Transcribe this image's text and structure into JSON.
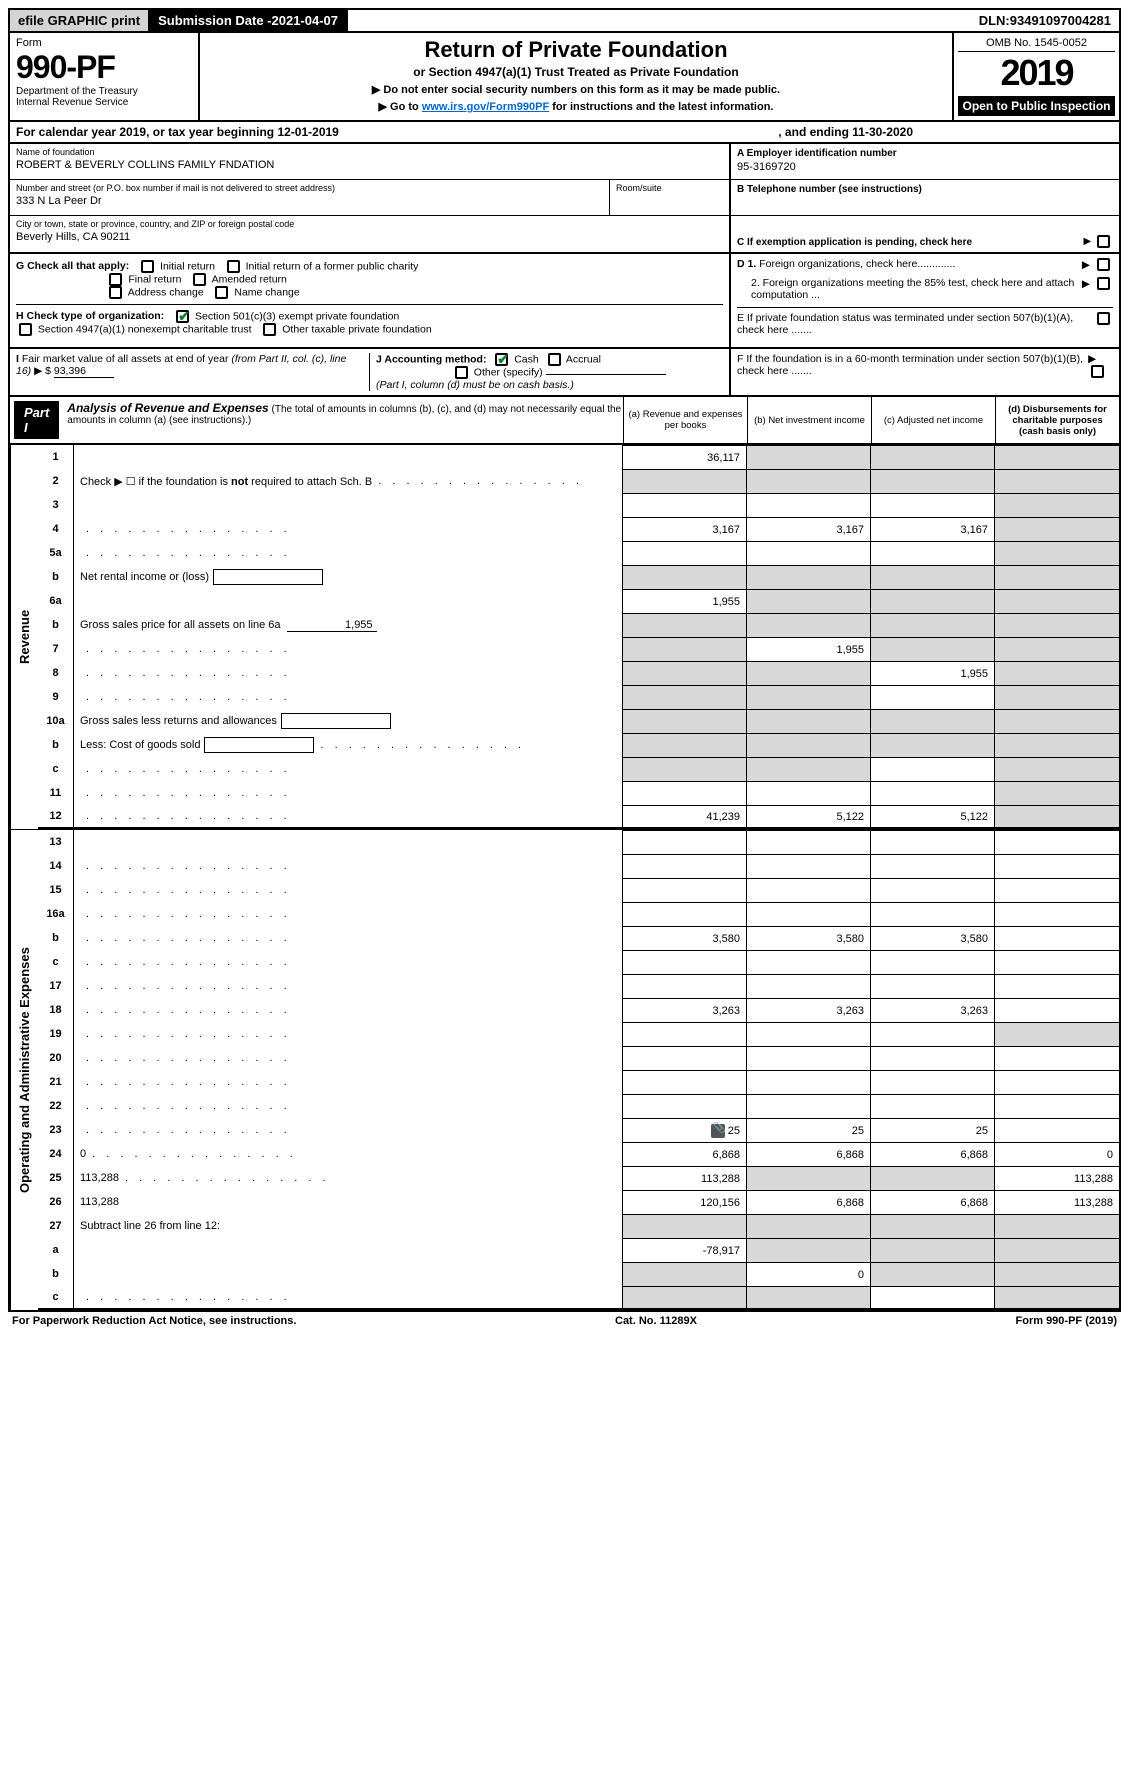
{
  "topbar": {
    "efile": "efile GRAPHIC print",
    "submission_label": "Submission Date - ",
    "submission_date": "2021-04-07",
    "dln_label": "DLN: ",
    "dln": "93491097004281"
  },
  "header": {
    "form_label_top": "Form",
    "form_number": "990-PF",
    "dept1": "Department of the Treasury",
    "dept2": "Internal Revenue Service",
    "title": "Return of Private Foundation",
    "subtitle": "or Section 4947(a)(1) Trust Treated as Private Foundation",
    "note1": "▶ Do not enter social security numbers on this form as it may be made public.",
    "note2_pre": "▶ Go to ",
    "note2_link": "www.irs.gov/Form990PF",
    "note2_post": " for instructions and the latest information.",
    "omb": "OMB No. 1545-0052",
    "year": "2019",
    "open": "Open to Public Inspection"
  },
  "calendar": {
    "line1a": "For calendar year 2019, or tax year beginning ",
    "begin": "12-01-2019",
    "mid": ", and ending ",
    "end": "11-30-2020"
  },
  "info": {
    "name_lbl": "Name of foundation",
    "name_val": "ROBERT & BEVERLY COLLINS FAMILY FNDATION",
    "street_lbl": "Number and street (or P.O. box number if mail is not delivered to street address)",
    "street_val": "333 N La Peer Dr",
    "room_lbl": "Room/suite",
    "city_lbl": "City or town, state or province, country, and ZIP or foreign postal code",
    "city_val": "Beverly Hills, CA  90211",
    "a_lbl": "A Employer identification number",
    "a_val": "95-3169720",
    "b_lbl": "B Telephone number (see instructions)",
    "c_lbl": "C If exemption application is pending, check here",
    "d1_lbl": "D 1. Foreign organizations, check here.............",
    "d2_lbl": "2. Foreign organizations meeting the 85% test, check here and attach computation ...",
    "e_lbl": "E  If private foundation status was terminated under section 507(b)(1)(A), check here .......",
    "f_lbl": "F  If the foundation is in a 60-month termination under section 507(b)(1)(B), check here .......",
    "g_lbl": "G Check all that apply:",
    "g_opts": [
      "Initial return",
      "Initial return of a former public charity",
      "Final return",
      "Amended return",
      "Address change",
      "Name change"
    ],
    "h_lbl": "H Check type of organization:",
    "h1": "Section 501(c)(3) exempt private foundation",
    "h2": "Section 4947(a)(1) nonexempt charitable trust",
    "h3": "Other taxable private foundation",
    "i_lbl": "I Fair market value of all assets at end of year (from Part II, col. (c), line 16) ▶ $",
    "i_val": "93,396",
    "j_lbl": "J Accounting method:",
    "j_cash": "Cash",
    "j_accrual": "Accrual",
    "j_other": "Other (specify)",
    "j_note": "(Part I, column (d) must be on cash basis.)"
  },
  "part1": {
    "tag": "Part I",
    "title": "Analysis of Revenue and Expenses",
    "title_note": " (The total of amounts in columns (b), (c), and (d) may not necessarily equal the amounts in column (a) (see instructions).)",
    "col_a": "(a)  Revenue and expenses per books",
    "col_b": "(b)  Net investment income",
    "col_c": "(c)  Adjusted net income",
    "col_d": "(d)  Disbursements for charitable purposes (cash basis only)"
  },
  "sides": {
    "rev": "Revenue",
    "exp": "Operating and Administrative Expenses"
  },
  "rows": [
    {
      "n": "1",
      "d": "",
      "a": "36,117",
      "b": "",
      "c": "",
      "bshade": 1,
      "cshade": 1,
      "dshade": 1
    },
    {
      "n": "2",
      "d": "Check ▶ ☐ if the foundation is <b>not</b> required to attach Sch. B",
      "dots": 1,
      "noval": 1
    },
    {
      "n": "3",
      "d": "",
      "a": "",
      "b": "",
      "c": "",
      "dshade": 1
    },
    {
      "n": "4",
      "d": "",
      "dots": 1,
      "a": "3,167",
      "b": "3,167",
      "c": "3,167",
      "dshade": 1
    },
    {
      "n": "5a",
      "d": "",
      "dots": 1,
      "a": "",
      "b": "",
      "c": "",
      "dshade": 1
    },
    {
      "n": "b",
      "d": "Net rental income or (loss)",
      "inline_box": 1,
      "noval": 1
    },
    {
      "n": "6a",
      "d": "",
      "a": "1,955",
      "b": "",
      "c": "",
      "bshade": 1,
      "cshade": 1,
      "dshade": 1
    },
    {
      "n": "b",
      "d": "Gross sales price for all assets on line 6a",
      "inline_underline": "1,955",
      "noval": 1
    },
    {
      "n": "7",
      "d": "",
      "dots": 1,
      "a": "",
      "b": "1,955",
      "c": "",
      "ashade": 1,
      "cshade": 1,
      "dshade": 1
    },
    {
      "n": "8",
      "d": "",
      "dots": 1,
      "a": "",
      "b": "",
      "c": "1,955",
      "ashade": 1,
      "bshade": 1,
      "dshade": 1
    },
    {
      "n": "9",
      "d": "",
      "dots": 1,
      "a": "",
      "b": "",
      "c": "",
      "ashade": 1,
      "bshade": 1,
      "dshade": 1
    },
    {
      "n": "10a",
      "d": "Gross sales less returns and allowances",
      "inline_box": 1,
      "noval": 1
    },
    {
      "n": "b",
      "d": "Less: Cost of goods sold",
      "dots": 1,
      "inline_box": 1,
      "noval": 1
    },
    {
      "n": "c",
      "d": "",
      "dots": 1,
      "a": "",
      "b": "",
      "c": "",
      "ashade": 1,
      "bshade": 1,
      "dshade": 1
    },
    {
      "n": "11",
      "d": "",
      "dots": 1,
      "a": "",
      "b": "",
      "c": "",
      "dshade": 1
    },
    {
      "n": "12",
      "d": "",
      "dots": 1,
      "a": "41,239",
      "b": "5,122",
      "c": "5,122",
      "dshade": 1,
      "bt": 1
    },
    {
      "n": "13",
      "d": "",
      "a": "",
      "b": "",
      "c": ""
    },
    {
      "n": "14",
      "d": "",
      "dots": 1,
      "a": "",
      "b": "",
      "c": ""
    },
    {
      "n": "15",
      "d": "",
      "dots": 1,
      "a": "",
      "b": "",
      "c": ""
    },
    {
      "n": "16a",
      "d": "",
      "dots": 1,
      "a": "",
      "b": "",
      "c": ""
    },
    {
      "n": "b",
      "d": "",
      "dots": 1,
      "a": "3,580",
      "b": "3,580",
      "c": "3,580"
    },
    {
      "n": "c",
      "d": "",
      "dots": 1,
      "a": "",
      "b": "",
      "c": ""
    },
    {
      "n": "17",
      "d": "",
      "dots": 1,
      "a": "",
      "b": "",
      "c": ""
    },
    {
      "n": "18",
      "d": "",
      "dots": 1,
      "a": "3,263",
      "b": "3,263",
      "c": "3,263"
    },
    {
      "n": "19",
      "d": "",
      "dots": 1,
      "a": "",
      "b": "",
      "c": "",
      "dshade": 1
    },
    {
      "n": "20",
      "d": "",
      "dots": 1,
      "a": "",
      "b": "",
      "c": ""
    },
    {
      "n": "21",
      "d": "",
      "dots": 1,
      "a": "",
      "b": "",
      "c": ""
    },
    {
      "n": "22",
      "d": "",
      "dots": 1,
      "a": "",
      "b": "",
      "c": ""
    },
    {
      "n": "23",
      "d": "",
      "dots": 1,
      "a": "25",
      "b": "25",
      "c": "25",
      "attach": 1
    },
    {
      "n": "24",
      "d": "0",
      "dots": 1,
      "a": "6,868",
      "b": "6,868",
      "c": "6,868",
      "bt": 1
    },
    {
      "n": "25",
      "d": "113,288",
      "dots": 1,
      "a": "113,288",
      "b": "",
      "c": "",
      "bshade": 1,
      "cshade": 1
    },
    {
      "n": "26",
      "d": "113,288",
      "a": "120,156",
      "b": "6,868",
      "c": "6,868",
      "bt": 1
    },
    {
      "n": "27",
      "d": "Subtract line 26 from line 12:",
      "noval": 1,
      "bt": 1
    },
    {
      "n": "a",
      "d": "",
      "a": "-78,917",
      "b": "",
      "c": "",
      "bshade": 1,
      "cshade": 1,
      "dshade": 1
    },
    {
      "n": "b",
      "d": "",
      "a": "",
      "b": "0",
      "c": "",
      "ashade": 1,
      "cshade": 1,
      "dshade": 1
    },
    {
      "n": "c",
      "d": "",
      "dots": 1,
      "a": "",
      "b": "",
      "c": "",
      "ashade": 1,
      "bshade": 1,
      "dshade": 1
    }
  ],
  "footer": {
    "left": "For Paperwork Reduction Act Notice, see instructions.",
    "mid": "Cat. No. 11289X",
    "right": "Form 990-PF (2019)"
  }
}
